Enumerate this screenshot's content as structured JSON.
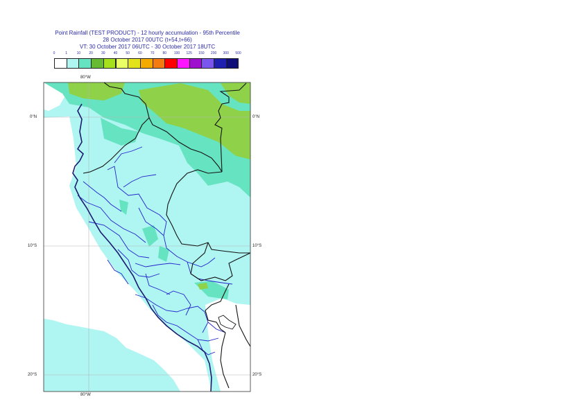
{
  "title": {
    "line1": "Point Rainfall (TEST PRODUCT) - 12 hourly accumulation - 95th Percentile",
    "line2": "28 October 2017 00UTC (t+54,t+66)",
    "line3": "VT: 30 October 2017 06UTC - 30 October 2017 18UTC"
  },
  "legend": {
    "thresholds": [
      "0",
      "1",
      "10",
      "20",
      "30",
      "40",
      "50",
      "60",
      "70",
      "80",
      "100",
      "125",
      "150",
      "200",
      "300",
      "500"
    ],
    "colors": [
      "#ffffff",
      "#aff5f2",
      "#66e3c0",
      "#66bb33",
      "#a6e01c",
      "#eaff66",
      "#e3e31c",
      "#f5aa00",
      "#f57a10",
      "#ff0000",
      "#ff14ff",
      "#9f0fce",
      "#7a55ee",
      "#1f1fb0",
      "#0f0f7a"
    ]
  },
  "map": {
    "meridian_labels": {
      "top": "80°W",
      "bottom": "80°W"
    },
    "parallel_labels": {
      "p0": "0°N",
      "p10": "10°S",
      "p20": "20°S"
    }
  }
}
